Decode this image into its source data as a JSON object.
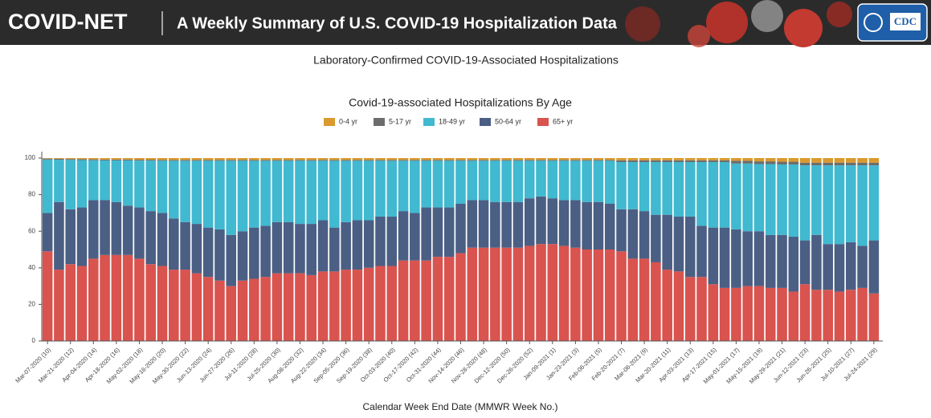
{
  "header": {
    "brand": "COVID-NET",
    "tagline": "A Weekly Summary of U.S. COVID-19 Hospitalization Data",
    "logo": "CDC"
  },
  "subtitle": "Laboratory-Confirmed COVID-19-Associated Hospitalizations",
  "chart_data": {
    "type": "bar",
    "stacked": true,
    "title": "Covid-19-associated Hospitalizations By Age",
    "x_label": "Calendar Week End Date (MMWR Week No.)",
    "categories": [
      "Mar-07-2020 (10)",
      null,
      "Mar-21-2020 (12)",
      null,
      "Apr-04-2020 (14)",
      null,
      "Apr-18-2020 (16)",
      null,
      "May-02-2020 (18)",
      null,
      "May-16-2020 (20)",
      null,
      "May-30-2020 (22)",
      null,
      "Jun-13-2020 (24)",
      null,
      "Jun-27-2020 (26)",
      null,
      "Jul-11-2020 (28)",
      null,
      "Jul-25-2020 (30)",
      null,
      "Aug-08-2020 (32)",
      null,
      "Aug-22-2020 (34)",
      null,
      "Sep-05-2020 (36)",
      null,
      "Sep-19-2020 (38)",
      null,
      "Oct-03-2020 (40)",
      null,
      "Oct-17-2020 (42)",
      null,
      "Oct-31-2020 (44)",
      null,
      "Nov-14-2020 (46)",
      null,
      "Nov-28-2020 (48)",
      null,
      "Dec-12-2020 (50)",
      null,
      "Dec-26-2020 (52)",
      null,
      "Jan-09-2021 (1)",
      null,
      "Jan-23-2021 (3)",
      null,
      "Feb-06-2021 (5)",
      null,
      "Feb-20-2021 (7)",
      null,
      "Mar-06-2021 (9)",
      null,
      "Mar-20-2021 (11)",
      null,
      "Apr-03-2021 (13)",
      null,
      "Apr-17-2021 (15)",
      null,
      "May-01-2021 (17)",
      null,
      "May-15-2021 (19)",
      null,
      "May-29-2021 (21)",
      null,
      "Jun-12-2021 (23)",
      null,
      "Jun-26-2021 (25)",
      null,
      "Jul-10-2021 (27)",
      null,
      "Jul-24-2021 (29)"
    ],
    "series": [
      {
        "name": "0-4 yr",
        "color": "#d99a2e",
        "values": [
          0.3,
          0.4,
          0.5,
          0.6,
          0.7,
          0.8,
          0.8,
          0.8,
          0.9,
          0.9,
          1,
          1,
          1,
          1,
          1,
          1,
          1,
          1,
          1,
          1,
          1,
          1,
          1,
          1,
          1,
          1,
          1,
          1,
          1,
          1,
          1,
          1,
          1,
          1,
          1,
          1,
          1,
          1,
          1,
          1,
          1,
          1,
          1,
          1,
          1,
          1,
          1,
          1,
          1,
          1,
          1.2,
          1.2,
          1.2,
          1.2,
          1.2,
          1.2,
          1.2,
          1.2,
          1.2,
          1.2,
          1.5,
          1.5,
          1.8,
          1.8,
          2,
          2,
          2.5,
          2.5,
          2.5,
          2.5,
          2.5,
          2.5,
          2.5
        ]
      },
      {
        "name": "5-17 yr",
        "color": "#6d6d6d",
        "values": [
          0.5,
          0.5,
          0.5,
          0.5,
          0.5,
          0.5,
          0.5,
          0.5,
          0.5,
          0.5,
          0.5,
          0.5,
          0.5,
          0.5,
          0.5,
          0.5,
          0.5,
          0.5,
          0.5,
          0.5,
          0.5,
          0.5,
          0.5,
          0.5,
          0.5,
          0.5,
          0.5,
          0.5,
          0.5,
          0.5,
          0.5,
          0.5,
          0.5,
          0.5,
          0.5,
          0.5,
          0.5,
          0.5,
          0.5,
          0.5,
          0.5,
          0.5,
          0.5,
          0.5,
          0.5,
          0.5,
          0.5,
          0.5,
          0.5,
          0.5,
          1,
          1,
          1,
          1,
          1,
          1,
          1,
          1,
          1,
          1,
          1.5,
          1.5,
          1.5,
          1.5,
          1.5,
          1.5,
          1.5,
          1.5,
          1.5,
          1.5,
          1.5,
          1.5,
          1.5
        ]
      },
      {
        "name": "18-49 yr",
        "color": "#41b9d0",
        "values": [
          29.2,
          23.1,
          27,
          25.9,
          21.8,
          21.7,
          22.7,
          24.7,
          25.6,
          27.6,
          28.5,
          31.5,
          33.5,
          34.5,
          36.5,
          37.5,
          40.5,
          38.5,
          36.5,
          35.5,
          33.5,
          33.5,
          34.5,
          34.5,
          32.5,
          36.5,
          33.5,
          32.5,
          32.5,
          30.5,
          30.5,
          27.5,
          28.5,
          25.5,
          25.5,
          25.5,
          23.5,
          21.5,
          21.5,
          22.5,
          22.5,
          22.5,
          20.5,
          19.5,
          20.5,
          21.5,
          21.5,
          22.5,
          22.5,
          23.5,
          25.8,
          25.8,
          26.8,
          28.8,
          28.8,
          29.8,
          29.8,
          34.8,
          35.8,
          35.8,
          36,
          37,
          36.7,
          38.7,
          38.5,
          39.5,
          41,
          38,
          43,
          43,
          42,
          44,
          41
        ]
      },
      {
        "name": "50-64 yr",
        "color": "#4b5f84",
        "values": [
          21,
          37,
          30,
          32,
          32,
          30,
          29,
          27,
          28,
          29,
          29,
          28,
          26,
          27,
          27,
          28,
          28,
          27,
          28,
          28,
          28,
          28,
          27,
          28,
          28,
          24,
          26,
          27,
          26,
          27,
          27,
          27,
          26,
          29,
          27,
          27,
          27,
          26,
          26,
          25,
          25,
          25,
          26,
          26,
          25,
          25,
          26,
          26,
          26,
          25,
          23,
          27,
          26,
          26,
          30,
          30,
          33,
          28,
          31,
          33,
          32,
          30,
          30,
          29,
          29,
          30,
          24,
          30,
          25,
          26,
          26,
          23,
          29
        ]
      },
      {
        "name": "65+ yr",
        "color": "#d9534f",
        "values": [
          49,
          39,
          42,
          41,
          45,
          47,
          47,
          47,
          45,
          42,
          41,
          39,
          39,
          37,
          35,
          33,
          30,
          33,
          34,
          35,
          37,
          37,
          37,
          36,
          38,
          38,
          39,
          39,
          40,
          41,
          41,
          44,
          44,
          44,
          46,
          46,
          48,
          51,
          51,
          51,
          51,
          51,
          52,
          53,
          53,
          52,
          51,
          50,
          50,
          50,
          49,
          45,
          45,
          43,
          39,
          38,
          35,
          35,
          31,
          29,
          29,
          30,
          30,
          29,
          29,
          27,
          31,
          28,
          28,
          27,
          28,
          29,
          26
        ]
      }
    ],
    "ylim": [
      0,
      100
    ],
    "yticks": [
      0,
      20,
      40,
      60,
      80,
      100
    ],
    "legend": "top"
  }
}
